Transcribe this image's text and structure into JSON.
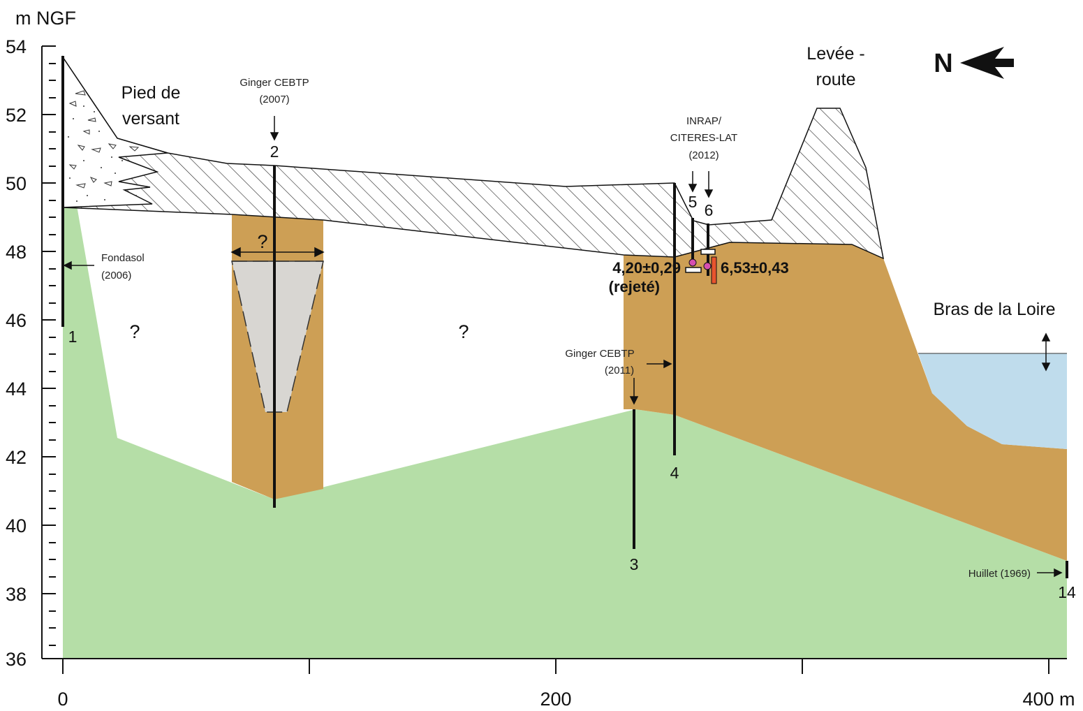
{
  "y_axis": {
    "unit": "m NGF",
    "ticks": [
      "54",
      "52",
      "50",
      "48",
      "46",
      "44",
      "42",
      "40",
      "38",
      "36"
    ]
  },
  "x_axis": {
    "ticks": [
      "0",
      "200",
      "400 m"
    ]
  },
  "labels": {
    "pied_line1": "Pied de",
    "pied_line2": "versant",
    "levee_line1": "Levée -",
    "levee_line2": "route",
    "bras": "Bras de la Loire",
    "north": "N",
    "q1": "?",
    "q2": "?",
    "q3": "?"
  },
  "sources": {
    "ginger2007_line1": "Ginger CEBTP",
    "ginger2007_line2": "(2007)",
    "fondasol_line1": "Fondasol",
    "fondasol_line2": "(2006)",
    "inrap_line1": "INRAP/",
    "inrap_line2": "CITERES-LAT",
    "inrap_line3": "(2012)",
    "ginger2011_line1": "Ginger CEBTP",
    "ginger2011_line2": "(2011)",
    "huillet": "Huillet (1969)"
  },
  "boreholes": [
    "1",
    "2",
    "3",
    "4",
    "5",
    "6",
    "14"
  ],
  "dates": {
    "date_a": "4,20±0,29",
    "date_a_note": "(rejeté)",
    "date_b": "6,53±0,43"
  },
  "colors": {
    "substrate": "#b5dea7",
    "alluvium": "#cd9f55",
    "water": "#bfdcec",
    "infill": "#d8d6d2"
  }
}
